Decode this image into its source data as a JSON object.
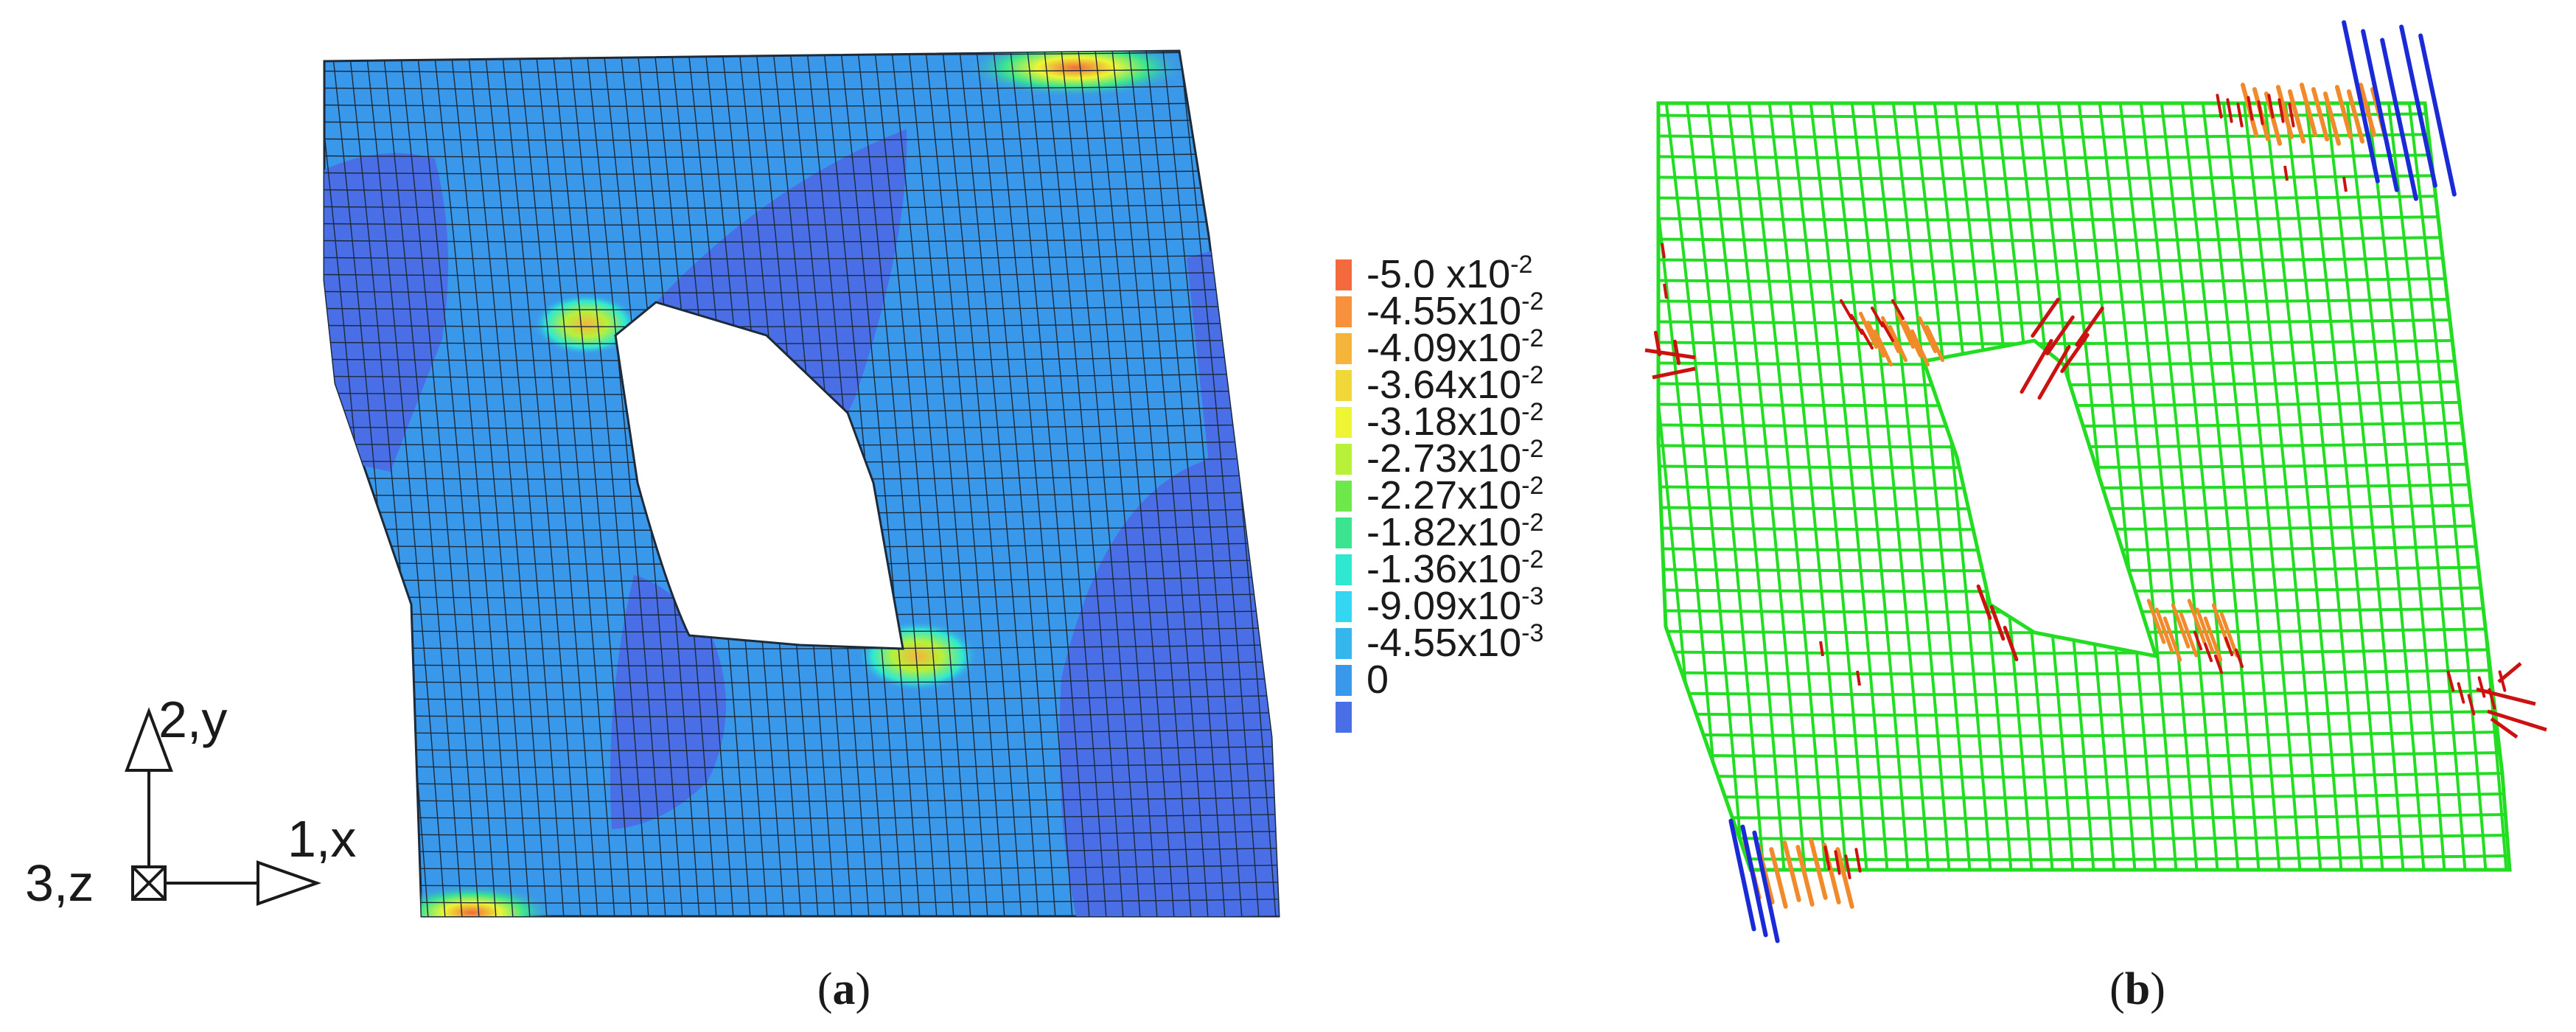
{
  "panel_a": {
    "caption_open": "(",
    "caption_letter": "a",
    "caption_close": ")",
    "legend": {
      "exponent_label": "x10",
      "entries": [
        {
          "mantissa": "-5.0 ",
          "exponent": "-2",
          "color": "#f26a3d"
        },
        {
          "mantissa": "-4.55",
          "exponent": "-2",
          "color": "#f7913e"
        },
        {
          "mantissa": "-4.09",
          "exponent": "-2",
          "color": "#f5b53c"
        },
        {
          "mantissa": "-3.64",
          "exponent": "-2",
          "color": "#f1d73a"
        },
        {
          "mantissa": "-3.18",
          "exponent": "-2",
          "color": "#eef534"
        },
        {
          "mantissa": "-2.73",
          "exponent": "-2",
          "color": "#b8f03a"
        },
        {
          "mantissa": "-2.27",
          "exponent": "-2",
          "color": "#6ee84a"
        },
        {
          "mantissa": "-1.82",
          "exponent": "-2",
          "color": "#3ae490"
        },
        {
          "mantissa": "-1.36",
          "exponent": "-2",
          "color": "#2fe8d2"
        },
        {
          "mantissa": "-9.09",
          "exponent": "-3",
          "color": "#35d6f2"
        },
        {
          "mantissa": "-4.55",
          "exponent": "-3",
          "color": "#35b7ee"
        },
        {
          "mantissa": "0",
          "exponent": "",
          "color": "#3a98ea"
        },
        {
          "mantissa": "",
          "exponent": "",
          "color": "#4a6ee6"
        }
      ]
    },
    "axes": {
      "y_label": "2,y",
      "x_label": "1,x",
      "z_label": "3,z"
    }
  },
  "panel_b": {
    "caption_open": "(",
    "caption_letter": "b",
    "caption_close": ")"
  },
  "colors": {
    "mesh_green": "#22dd22",
    "mesh_line_a": "#1c2a3a",
    "base_blue": "#3a98ea",
    "dark_blue": "#4a6ee6",
    "crack_red": "#cc1111",
    "crack_orange": "#f08a2a",
    "crack_blue": "#1a2ad6"
  }
}
